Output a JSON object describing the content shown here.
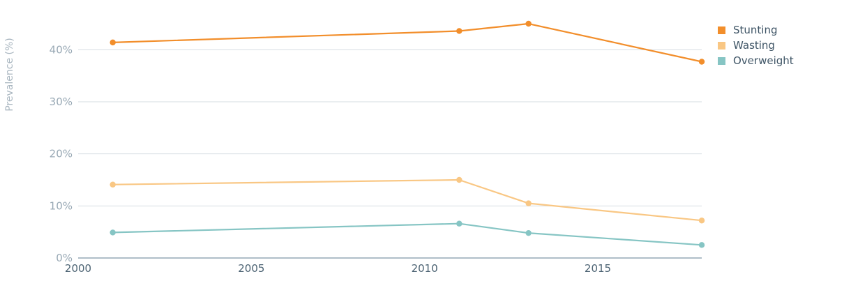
{
  "chart_data": {
    "type": "line",
    "ylabel": "Prevalence (%)",
    "xlabel": "",
    "title": "",
    "xlim": [
      2000,
      2018
    ],
    "ylim": [
      0,
      45
    ],
    "x_ticks": [
      2000,
      2005,
      2010,
      2015
    ],
    "y_ticks": [
      0,
      10,
      20,
      30,
      40
    ],
    "y_tick_labels": [
      "0%",
      "10%",
      "20%",
      "30%",
      "40%"
    ],
    "grid": true,
    "legend_position": "top-right",
    "series": [
      {
        "name": "Stunting",
        "color": "#f28e2b",
        "points": [
          [
            2001,
            41.4
          ],
          [
            2011,
            43.6
          ],
          [
            2013,
            45.0
          ],
          [
            2018,
            37.7
          ]
        ]
      },
      {
        "name": "Wasting",
        "color": "#f9c784",
        "points": [
          [
            2001,
            14.1
          ],
          [
            2011,
            15.0
          ],
          [
            2013,
            10.5
          ],
          [
            2018,
            7.2
          ]
        ]
      },
      {
        "name": "Overweight",
        "color": "#86c5c4",
        "points": [
          [
            2001,
            4.9
          ],
          [
            2011,
            6.6
          ],
          [
            2013,
            4.8
          ],
          [
            2018,
            2.5
          ]
        ]
      }
    ]
  }
}
